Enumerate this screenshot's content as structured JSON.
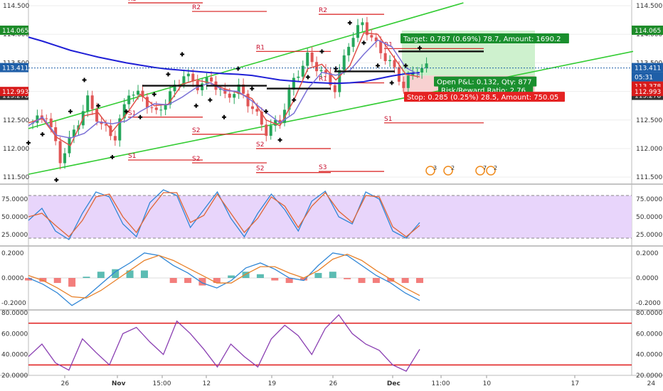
{
  "chart_data": [
    {
      "type": "line",
      "panel": "price",
      "title": "",
      "ylim": [
        111.39,
        114.6
      ],
      "y_ticks": [
        "114.500",
        "114.000",
        "113.500",
        "113.000",
        "112.500",
        "112.000",
        "111.500"
      ],
      "x_ticks": [
        "26",
        "Nov",
        "15:00",
        "12",
        "19",
        "26",
        "Dec",
        "11:00",
        "10",
        "17",
        "24"
      ],
      "price_tags": [
        {
          "value": "114.065",
          "color": "#1e8c2a"
        },
        {
          "value": "113.411",
          "color": "#1f5fa8"
        },
        {
          "value": "05:31",
          "color": "#1f5fa8"
        },
        {
          "value": "113.378",
          "color": "#d81b1b"
        },
        {
          "value": "113.278",
          "color": "#333333"
        },
        {
          "value": "112.993",
          "color": "#d81b1b"
        }
      ],
      "moving_average_200": [
        113.95,
        113.88,
        113.8,
        113.72,
        113.66,
        113.6,
        113.55,
        113.5,
        113.46,
        113.42,
        113.39,
        113.37,
        113.35,
        113.33,
        113.31,
        113.3,
        113.28,
        113.24,
        113.2,
        113.18,
        113.16,
        113.15,
        113.14,
        113.15,
        113.17,
        113.22,
        113.27,
        113.31,
        113.33
      ],
      "close": [
        112.45,
        112.6,
        111.8,
        112.3,
        112.85,
        112.4,
        112.2,
        113.0,
        112.9,
        112.6,
        112.95,
        113.3,
        113.1,
        113.2,
        112.9,
        113.05,
        112.7,
        112.3,
        112.5,
        113.2,
        113.6,
        113.35,
        113.05,
        113.85,
        114.2,
        113.8,
        113.5,
        113.1,
        113.41
      ],
      "pivots": [
        {
          "label": "R3",
          "value": 114.55
        },
        {
          "label": "R2",
          "value": 114.4
        },
        {
          "label": "R1",
          "value": 113.7
        },
        {
          "label": "R1",
          "value": 113.15
        },
        {
          "label": "S1",
          "value": 112.45
        },
        {
          "label": "S1",
          "value": 111.8
        },
        {
          "label": "S2",
          "value": 111.75
        },
        {
          "label": "S2",
          "value": 111.58
        },
        {
          "label": "R2",
          "value": 114.35
        },
        {
          "label": "R1",
          "value": 113.75
        },
        {
          "label": "S1",
          "value": 112.55
        },
        {
          "label": "S2",
          "value": 112.25
        },
        {
          "label": "S2",
          "value": 112.0
        },
        {
          "label": "S3",
          "value": 111.6
        }
      ],
      "trendlines": [
        {
          "from": {
            "x": 0,
            "y": 111.55
          },
          "to": {
            "x": 28,
            "y": 113.7
          },
          "color": "#33cc33"
        },
        {
          "from": {
            "x": 0,
            "y": 112.35
          },
          "to": {
            "x": 24,
            "y": 114.55
          },
          "color": "#33cc33"
        }
      ],
      "position": {
        "target_label": "Target: 0.787 (0.69%) 78.7, Amount: 1690.2",
        "open_label": "Open P&L: 0.132, Qty: 877",
        "ratio_label": "Risk/Reward Ratio: 2.76",
        "stop_label": "Stop: 0.285 (0.25%) 28.5, Amount: 750.05",
        "entry": 113.278,
        "target": 114.065,
        "stop": 112.993
      },
      "event_markers": [
        "3",
        "2",
        "7",
        "2"
      ]
    },
    {
      "type": "line",
      "panel": "stochastic",
      "ylim": [
        10,
        95
      ],
      "bands": [
        80,
        20
      ],
      "y_ticks": [
        "75.0000",
        "50.0000",
        "25.0000"
      ],
      "series": [
        {
          "values": [
            45,
            62,
            30,
            18,
            55,
            85,
            78,
            40,
            22,
            70,
            88,
            80,
            35,
            60,
            85,
            48,
            22,
            55,
            82,
            60,
            30,
            72,
            86,
            50,
            40,
            85,
            75,
            30,
            20,
            42
          ],
          "color": "#2f86d6"
        },
        {
          "values": [
            50,
            55,
            38,
            22,
            45,
            78,
            82,
            50,
            28,
            60,
            84,
            84,
            42,
            52,
            82,
            55,
            28,
            48,
            78,
            65,
            35,
            65,
            84,
            58,
            42,
            80,
            78,
            36,
            22,
            38
          ],
          "color": "#e06535"
        }
      ]
    },
    {
      "type": "line",
      "panel": "macd",
      "ylim": [
        -0.25,
        0.25
      ],
      "y_ticks": [
        "0.2000",
        "0.0000",
        "-0.2000"
      ],
      "series": [
        {
          "values": [
            0.0,
            -0.05,
            -0.12,
            -0.22,
            -0.15,
            -0.05,
            0.05,
            0.12,
            0.2,
            0.18,
            0.1,
            0.04,
            -0.04,
            -0.08,
            -0.02,
            0.08,
            0.12,
            0.07,
            0.0,
            -0.02,
            0.1,
            0.2,
            0.18,
            0.1,
            0.02,
            -0.04,
            -0.12,
            -0.18
          ],
          "color": "#2f86d6"
        },
        {
          "values": [
            0.02,
            -0.02,
            -0.08,
            -0.15,
            -0.16,
            -0.1,
            -0.02,
            0.06,
            0.14,
            0.18,
            0.14,
            0.08,
            0.02,
            -0.04,
            -0.04,
            0.03,
            0.09,
            0.09,
            0.04,
            0.0,
            0.06,
            0.15,
            0.19,
            0.14,
            0.06,
            -0.01,
            -0.08,
            -0.14
          ],
          "color": "#e8812a"
        }
      ],
      "histogram": [
        -0.02,
        -0.03,
        -0.04,
        -0.07,
        0.01,
        0.05,
        0.07,
        0.06,
        0.06,
        0.0,
        -0.04,
        -0.04,
        -0.06,
        -0.04,
        0.02,
        0.05,
        0.03,
        -0.02,
        -0.04,
        -0.02,
        0.04,
        0.05,
        -0.01,
        -0.04,
        -0.04,
        -0.03,
        -0.04,
        -0.04
      ]
    },
    {
      "type": "line",
      "panel": "rsi",
      "ylim": [
        20,
        82
      ],
      "bands": [
        70,
        30
      ],
      "y_ticks": [
        "80.0000",
        "60.0000",
        "40.0000",
        "20.0000"
      ],
      "series": [
        {
          "values": [
            38,
            50,
            32,
            25,
            55,
            42,
            30,
            60,
            66,
            52,
            40,
            72,
            60,
            45,
            28,
            50,
            38,
            28,
            55,
            68,
            58,
            40,
            65,
            78,
            60,
            50,
            44,
            30,
            24,
            45
          ],
          "color": "#8a3fb2"
        }
      ]
    }
  ]
}
